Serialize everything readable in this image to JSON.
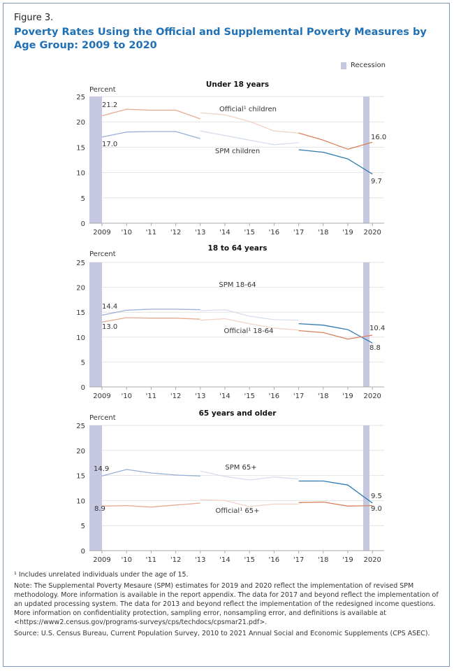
{
  "figure_label": "Figure 3.",
  "title": "Poverty Rates Using the Official and Supplemental Poverty Measures by Age Group: 2009 to 2020",
  "legend": {
    "recession_label": "Recession",
    "recession_color": "#c5c8e0"
  },
  "colors": {
    "spm_dark": "#2e7ab0",
    "spm_mid": "#98afd8",
    "spm_light": "#d6deee",
    "official_dark": "#d9815d",
    "official_mid": "#e6ab91",
    "official_light": "#f2d3c5",
    "grid": "#e2e2e2",
    "axis": "#aaaaaa"
  },
  "chart_data": [
    {
      "type": "line",
      "title": "Under 18 years",
      "ylabel": "Percent",
      "ylim": [
        0,
        25
      ],
      "yticks": [
        "0",
        "5",
        "10",
        "15",
        "20",
        "25"
      ],
      "x_tick_labels": [
        "2009",
        "'10",
        "'11",
        "'12",
        "'13",
        "'14",
        "'15",
        "'16",
        "'17",
        "'18",
        "'19",
        "2020"
      ],
      "recession_years": [
        2009,
        2020
      ],
      "series": [
        {
          "name": "Official children",
          "label": "Official¹ children",
          "kind": "official",
          "segments": [
            {
              "x": [
                2009,
                2010,
                2011,
                2012,
                2013
              ],
              "y": [
                21.2,
                22.5,
                22.3,
                22.3,
                20.6
              ]
            },
            {
              "x": [
                2013,
                2014,
                2015,
                2016,
                2017
              ],
              "y": [
                21.8,
                21.4,
                20.1,
                18.2,
                17.8
              ]
            },
            {
              "x": [
                2017,
                2018,
                2019,
                2020
              ],
              "y": [
                17.8,
                16.4,
                14.6,
                16.0
              ]
            }
          ]
        },
        {
          "name": "SPM children",
          "label": "SPM children",
          "kind": "spm",
          "segments": [
            {
              "x": [
                2009,
                2010,
                2011,
                2012,
                2013
              ],
              "y": [
                17.0,
                18.0,
                18.1,
                18.1,
                16.7
              ]
            },
            {
              "x": [
                2013,
                2014,
                2015,
                2016,
                2017
              ],
              "y": [
                18.2,
                17.3,
                16.4,
                15.5,
                15.9
              ]
            },
            {
              "x": [
                2017,
                2018,
                2019,
                2020
              ],
              "y": [
                14.5,
                14.0,
                12.7,
                9.7
              ]
            }
          ]
        }
      ],
      "data_labels": [
        "21.2",
        "17.0",
        "16.0",
        "9.7"
      ]
    },
    {
      "type": "line",
      "title": "18 to 64 years",
      "ylabel": "Percent",
      "ylim": [
        0,
        25
      ],
      "yticks": [
        "0",
        "5",
        "10",
        "15",
        "20",
        "25"
      ],
      "x_tick_labels": [
        "2009",
        "'10",
        "'11",
        "'12",
        "'13",
        "'14",
        "'15",
        "'16",
        "'17",
        "'18",
        "'19",
        "2020"
      ],
      "recession_years": [
        2009,
        2020
      ],
      "series": [
        {
          "name": "SPM 18-64",
          "label": "SPM 18-64",
          "kind": "spm",
          "segments": [
            {
              "x": [
                2009,
                2010,
                2011,
                2012,
                2013
              ],
              "y": [
                14.4,
                15.4,
                15.6,
                15.6,
                15.5
              ]
            },
            {
              "x": [
                2013,
                2014,
                2015,
                2016,
                2017
              ],
              "y": [
                15.3,
                15.5,
                14.2,
                13.5,
                13.4
              ]
            },
            {
              "x": [
                2017,
                2018,
                2019,
                2020
              ],
              "y": [
                12.7,
                12.4,
                11.5,
                8.8
              ]
            }
          ]
        },
        {
          "name": "Official 18-64",
          "label": "Official¹ 18-64",
          "kind": "official",
          "segments": [
            {
              "x": [
                2009,
                2010,
                2011,
                2012,
                2013
              ],
              "y": [
                13.0,
                13.9,
                13.8,
                13.8,
                13.6
              ]
            },
            {
              "x": [
                2013,
                2014,
                2015,
                2016,
                2017
              ],
              "y": [
                13.4,
                13.7,
                12.7,
                11.8,
                11.4
              ]
            },
            {
              "x": [
                2017,
                2018,
                2019,
                2020
              ],
              "y": [
                11.3,
                10.9,
                9.6,
                10.4
              ]
            }
          ]
        }
      ],
      "data_labels": [
        "14.4",
        "13.0",
        "10.4",
        "8.8"
      ]
    },
    {
      "type": "line",
      "title": "65 years and older",
      "ylabel": "Percent",
      "ylim": [
        0,
        25
      ],
      "yticks": [
        "0",
        "5",
        "10",
        "15",
        "20",
        "25"
      ],
      "x_tick_labels": [
        "2009",
        "'10",
        "'11",
        "'12",
        "'13",
        "'14",
        "'15",
        "'16",
        "'17",
        "'18",
        "'19",
        "2020"
      ],
      "recession_years": [
        2009,
        2020
      ],
      "series": [
        {
          "name": "SPM 65+",
          "label": "SPM 65+",
          "kind": "spm",
          "segments": [
            {
              "x": [
                2009,
                2010,
                2011,
                2012,
                2013
              ],
              "y": [
                14.9,
                16.2,
                15.5,
                15.1,
                14.9
              ]
            },
            {
              "x": [
                2013,
                2014,
                2015,
                2016,
                2017
              ],
              "y": [
                15.9,
                14.8,
                14.1,
                14.7,
                14.3
              ]
            },
            {
              "x": [
                2017,
                2018,
                2019,
                2020
              ],
              "y": [
                13.9,
                13.9,
                13.1,
                9.5
              ]
            }
          ]
        },
        {
          "name": "Official 65+",
          "label": "Official¹ 65+",
          "kind": "official",
          "segments": [
            {
              "x": [
                2009,
                2010,
                2011,
                2012,
                2013
              ],
              "y": [
                8.9,
                9.0,
                8.7,
                9.1,
                9.5
              ]
            },
            {
              "x": [
                2013,
                2014,
                2015,
                2016,
                2017
              ],
              "y": [
                10.2,
                10.0,
                8.8,
                9.3,
                9.3
              ]
            },
            {
              "x": [
                2017,
                2018,
                2019,
                2020
              ],
              "y": [
                9.6,
                9.7,
                8.9,
                9.0
              ]
            }
          ]
        }
      ],
      "data_labels": [
        "14.9",
        "8.9",
        "9.5",
        "9.0"
      ]
    }
  ],
  "notes": {
    "footnote": "¹ Includes unrelated individuals under the age of 15.",
    "note": "Note: The Supplemental Poverty Mesaure (SPM) estimates for 2019 and 2020 reflect the implementation of revised SPM methodology. More information is available in the report appendix. The data for 2017 and beyond reflect the implementation of an updated processing system. The data for 2013 and beyond reflect the implementation of the redesigned income questions. More information on confidentiality protection, sampling error, nonsampling error, and definitions is available at <https://www2.census.gov/programs-surveys/cps/techdocs/cpsmar21.pdf>.",
    "source": "Source: U.S. Census Bureau, Current Population Survey, 2010 to 2021 Annual Social and Economic Supplements (CPS ASEC)."
  }
}
